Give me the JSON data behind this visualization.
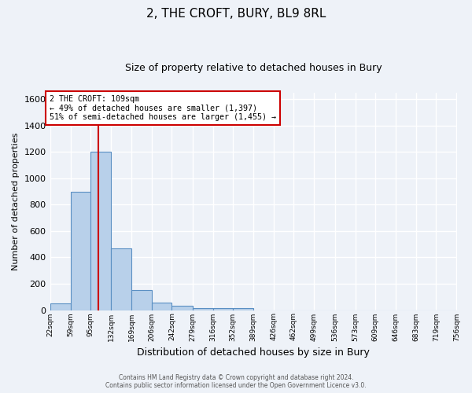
{
  "title": "2, THE CROFT, BURY, BL9 8RL",
  "subtitle": "Size of property relative to detached houses in Bury",
  "bar_values": [
    50,
    900,
    1200,
    470,
    155,
    55,
    30,
    15,
    15,
    15,
    0,
    0,
    0,
    0,
    0,
    0,
    0,
    0,
    0,
    0
  ],
  "bin_labels": [
    "22sqm",
    "59sqm",
    "95sqm",
    "132sqm",
    "169sqm",
    "206sqm",
    "242sqm",
    "279sqm",
    "316sqm",
    "352sqm",
    "389sqm",
    "426sqm",
    "462sqm",
    "499sqm",
    "536sqm",
    "573sqm",
    "609sqm",
    "646sqm",
    "683sqm",
    "719sqm",
    "756sqm"
  ],
  "bin_edges": [
    22,
    59,
    95,
    132,
    169,
    206,
    242,
    279,
    316,
    352,
    389,
    426,
    462,
    499,
    536,
    573,
    609,
    646,
    683,
    719,
    756
  ],
  "bar_color": "#b8d0ea",
  "bar_edge_color": "#5a8fc3",
  "property_value": 109,
  "red_line_color": "#cc0000",
  "annotation_text": "2 THE CROFT: 109sqm\n← 49% of detached houses are smaller (1,397)\n51% of semi-detached houses are larger (1,455) →",
  "annotation_box_color": "#ffffff",
  "annotation_box_edge": "#cc0000",
  "ylabel": "Number of detached properties",
  "xlabel": "Distribution of detached houses by size in Bury",
  "ylim": [
    0,
    1650
  ],
  "yticks": [
    0,
    200,
    400,
    600,
    800,
    1000,
    1200,
    1400,
    1600
  ],
  "footer_line1": "Contains HM Land Registry data © Crown copyright and database right 2024.",
  "footer_line2": "Contains public sector information licensed under the Open Government Licence v3.0.",
  "background_color": "#eef2f8",
  "plot_background": "#eef2f8",
  "grid_color": "#ffffff"
}
